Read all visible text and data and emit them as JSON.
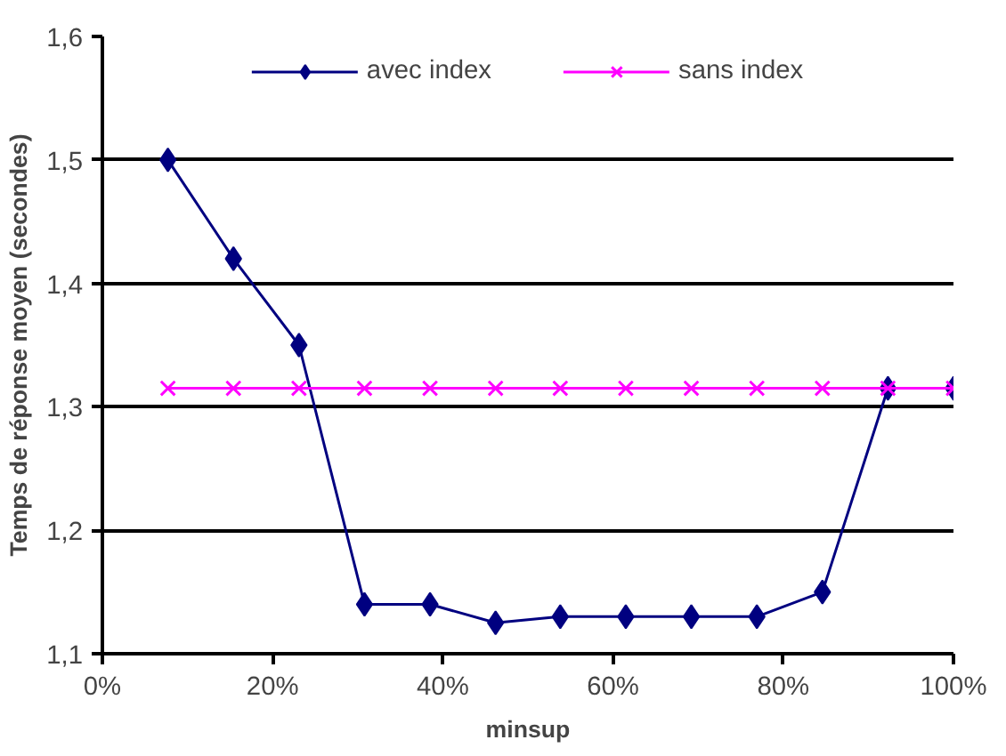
{
  "chart_data": {
    "type": "line",
    "xlabel": "minsup",
    "ylabel": "Temps de réponse moyen (secondes)",
    "xlim": [
      0,
      100
    ],
    "ylim": [
      1.1,
      1.6
    ],
    "xticks": [
      {
        "value": 0,
        "label": "0%"
      },
      {
        "value": 20,
        "label": "20%"
      },
      {
        "value": 40,
        "label": "40%"
      },
      {
        "value": 60,
        "label": "60%"
      },
      {
        "value": 80,
        "label": "80%"
      },
      {
        "value": 100,
        "label": "100%"
      }
    ],
    "yticks": [
      {
        "value": 1.1,
        "label": "1,1"
      },
      {
        "value": 1.2,
        "label": "1,2"
      },
      {
        "value": 1.3,
        "label": "1,3"
      },
      {
        "value": 1.4,
        "label": "1,4"
      },
      {
        "value": 1.5,
        "label": "1,5"
      },
      {
        "value": 1.6,
        "label": "1,6"
      }
    ],
    "x": [
      7.7,
      15.4,
      23.1,
      30.8,
      38.5,
      46.2,
      53.8,
      61.5,
      69.2,
      76.9,
      84.6,
      92.3,
      100
    ],
    "grid": "y",
    "legend": "top",
    "series": [
      {
        "name": "avec index",
        "color": "#000080",
        "marker": "diamond",
        "values": [
          1.5,
          1.42,
          1.35,
          1.14,
          1.14,
          1.125,
          1.13,
          1.13,
          1.13,
          1.13,
          1.15,
          1.315,
          1.315
        ]
      },
      {
        "name": "sans index",
        "color": "#ff00ff",
        "marker": "cross",
        "values": [
          1.315,
          1.315,
          1.315,
          1.315,
          1.315,
          1.315,
          1.315,
          1.315,
          1.315,
          1.315,
          1.315,
          1.315,
          1.315
        ]
      }
    ]
  }
}
